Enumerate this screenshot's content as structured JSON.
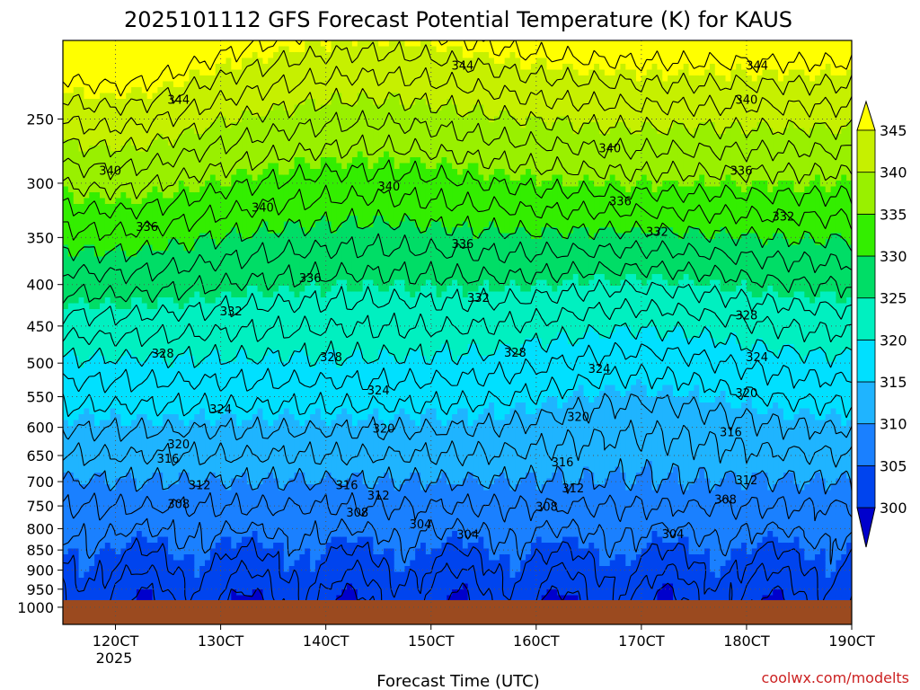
{
  "chart_data": {
    "type": "contour",
    "title": "2025101112 GFS Forecast Potential Temperature (K) for KAUS",
    "xlabel": "Forecast Time (UTC)",
    "ylabel": "",
    "credit": "coolwx.com/modelts",
    "x_start_label": "120CT",
    "x_ticks": [
      {
        "label": "120CT",
        "day": 12
      },
      {
        "label": "130CT",
        "day": 13
      },
      {
        "label": "140CT",
        "day": 14
      },
      {
        "label": "150CT",
        "day": 15
      },
      {
        "label": "160CT",
        "day": 16
      },
      {
        "label": "170CT",
        "day": 17
      },
      {
        "label": "180CT",
        "day": 18
      },
      {
        "label": "190CT",
        "day": 19
      }
    ],
    "x_year_label": "2025",
    "xlim_days": [
      11.5,
      19.0
    ],
    "y_ticks": [
      250,
      300,
      350,
      400,
      450,
      500,
      550,
      600,
      650,
      700,
      750,
      800,
      850,
      900,
      950,
      1000
    ],
    "ylim_hpa": [
      1050,
      200
    ],
    "colorbar": {
      "levels": [
        300,
        305,
        310,
        315,
        320,
        325,
        330,
        335,
        340,
        345
      ],
      "colors": [
        "#0000cc",
        "#0044ee",
        "#1a80ff",
        "#1fb4ff",
        "#00e0ff",
        "#00f0c0",
        "#00dd66",
        "#33ee00",
        "#99f000",
        "#c6f000",
        "#ffff00"
      ]
    },
    "fill_bands": [
      {
        "theta_min": 345,
        "color": "#ffff00"
      },
      {
        "theta_min": 340,
        "color": "#c6f000"
      },
      {
        "theta_min": 335,
        "color": "#99f000"
      },
      {
        "theta_min": 330,
        "color": "#33ee00"
      },
      {
        "theta_min": 325,
        "color": "#00dd66"
      },
      {
        "theta_min": 320,
        "color": "#00f0c0"
      },
      {
        "theta_min": 315,
        "color": "#00e0ff"
      },
      {
        "theta_min": 310,
        "color": "#1fb4ff"
      },
      {
        "theta_min": 305,
        "color": "#1a80ff"
      },
      {
        "theta_min": 300,
        "color": "#0044ee"
      },
      {
        "theta_min": 0,
        "color": "#0000cc"
      }
    ],
    "contour_levels": [
      300,
      302,
      304,
      306,
      308,
      310,
      312,
      314,
      316,
      318,
      320,
      322,
      324,
      326,
      328,
      330,
      332,
      334,
      336,
      338,
      340,
      342,
      344,
      346
    ],
    "contour_labels": [
      {
        "value": 344,
        "day": 15.3,
        "p": 215
      },
      {
        "value": 344,
        "day": 18.1,
        "p": 215
      },
      {
        "value": 344,
        "day": 12.6,
        "p": 237
      },
      {
        "value": 340,
        "day": 18.0,
        "p": 237
      },
      {
        "value": 340,
        "day": 16.7,
        "p": 272
      },
      {
        "value": 340,
        "day": 11.95,
        "p": 290
      },
      {
        "value": 340,
        "day": 14.6,
        "p": 303
      },
      {
        "value": 336,
        "day": 17.95,
        "p": 290
      },
      {
        "value": 340,
        "day": 13.4,
        "p": 322
      },
      {
        "value": 336,
        "day": 16.8,
        "p": 316
      },
      {
        "value": 336,
        "day": 12.3,
        "p": 340
      },
      {
        "value": 332,
        "day": 18.35,
        "p": 330
      },
      {
        "value": 332,
        "day": 17.15,
        "p": 345
      },
      {
        "value": 336,
        "day": 15.3,
        "p": 357
      },
      {
        "value": 336,
        "day": 13.85,
        "p": 393
      },
      {
        "value": 332,
        "day": 15.45,
        "p": 416
      },
      {
        "value": 332,
        "day": 13.1,
        "p": 432
      },
      {
        "value": 328,
        "day": 18.0,
        "p": 437
      },
      {
        "value": 328,
        "day": 14.05,
        "p": 492
      },
      {
        "value": 328,
        "day": 15.8,
        "p": 486
      },
      {
        "value": 328,
        "day": 12.45,
        "p": 487
      },
      {
        "value": 324,
        "day": 18.1,
        "p": 492
      },
      {
        "value": 324,
        "day": 16.6,
        "p": 509
      },
      {
        "value": 320,
        "day": 18.0,
        "p": 545
      },
      {
        "value": 324,
        "day": 14.5,
        "p": 541
      },
      {
        "value": 324,
        "day": 13.0,
        "p": 571
      },
      {
        "value": 320,
        "day": 16.4,
        "p": 583
      },
      {
        "value": 320,
        "day": 14.55,
        "p": 603
      },
      {
        "value": 316,
        "day": 17.85,
        "p": 609
      },
      {
        "value": 320,
        "day": 12.6,
        "p": 630
      },
      {
        "value": 316,
        "day": 12.5,
        "p": 657
      },
      {
        "value": 316,
        "day": 16.25,
        "p": 663
      },
      {
        "value": 312,
        "day": 12.8,
        "p": 708
      },
      {
        "value": 316,
        "day": 14.2,
        "p": 708
      },
      {
        "value": 312,
        "day": 18.0,
        "p": 698
      },
      {
        "value": 312,
        "day": 16.35,
        "p": 714
      },
      {
        "value": 312,
        "day": 14.5,
        "p": 729
      },
      {
        "value": 308,
        "day": 12.6,
        "p": 747
      },
      {
        "value": 308,
        "day": 17.8,
        "p": 737
      },
      {
        "value": 308,
        "day": 14.3,
        "p": 765
      },
      {
        "value": 308,
        "day": 16.1,
        "p": 753
      },
      {
        "value": 304,
        "day": 14.9,
        "p": 791
      },
      {
        "value": 304,
        "day": 15.35,
        "p": 815
      },
      {
        "value": 304,
        "day": 17.3,
        "p": 814
      }
    ]
  }
}
